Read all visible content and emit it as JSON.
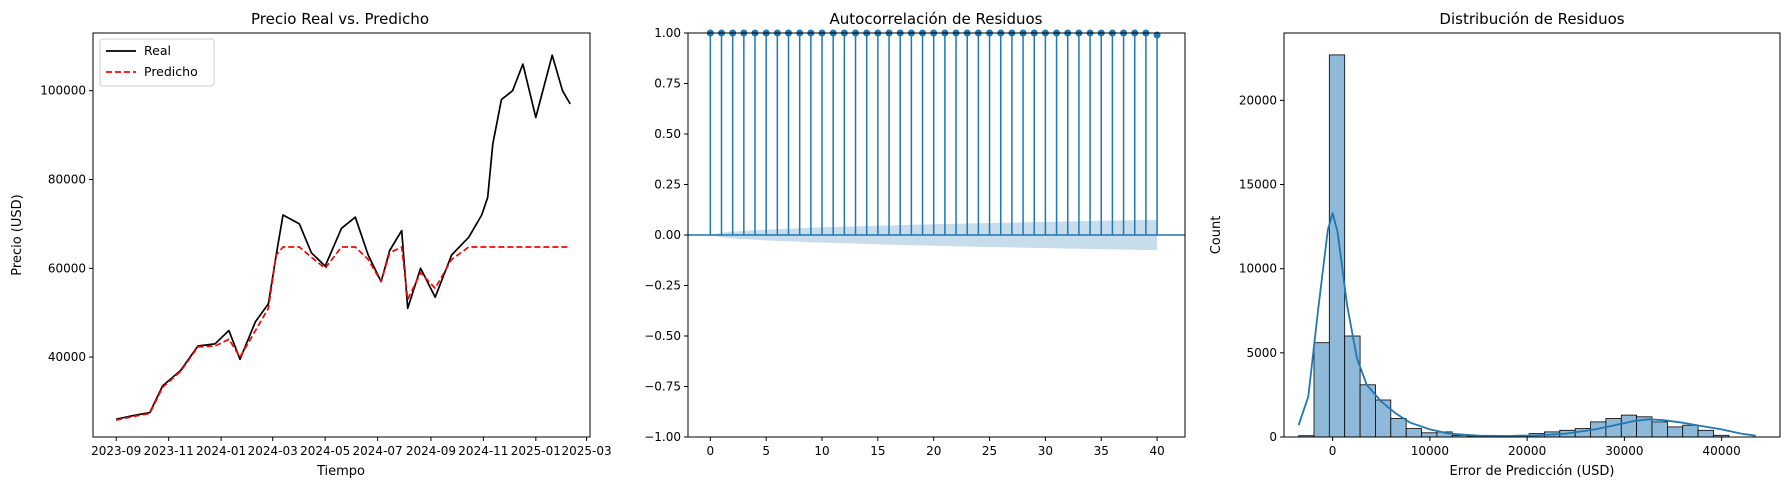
{
  "colors": {
    "real": "#000000",
    "predicted": "#ff0000",
    "acf": "#1f77b4",
    "band": "#1f77b4",
    "hist_fill": "#8fb9d9",
    "kde": "#1f77b4"
  },
  "chart_data": [
    {
      "type": "line",
      "title": "Precio Real vs. Predicho",
      "xlabel": "Tiempo",
      "ylabel": "Precio (USD)",
      "legend": {
        "placement": "top-left",
        "entries": [
          "Real",
          "Predicho"
        ]
      },
      "xlim": [
        "2023-08-05",
        "2025-03-05"
      ],
      "ylim": [
        22000,
        113000
      ],
      "x_ticks": [
        "2023-09",
        "2023-11",
        "2024-01",
        "2024-03",
        "2024-05",
        "2024-07",
        "2024-09",
        "2024-11",
        "2025-01",
        "2025-03"
      ],
      "y_ticks": [
        40000,
        60000,
        80000,
        100000
      ],
      "series": [
        {
          "name": "Real",
          "style": "solid",
          "x": [
            "2023-09-01",
            "2023-09-20",
            "2023-10-10",
            "2023-10-25",
            "2023-11-15",
            "2023-12-05",
            "2023-12-25",
            "2024-01-10",
            "2024-01-23",
            "2024-02-10",
            "2024-02-25",
            "2024-03-05",
            "2024-03-13",
            "2024-04-01",
            "2024-04-15",
            "2024-05-01",
            "2024-05-20",
            "2024-06-05",
            "2024-06-20",
            "2024-07-05",
            "2024-07-15",
            "2024-07-29",
            "2024-08-05",
            "2024-08-20",
            "2024-09-06",
            "2024-09-25",
            "2024-10-15",
            "2024-10-30",
            "2024-11-06",
            "2024-11-12",
            "2024-11-22",
            "2024-12-05",
            "2024-12-17",
            "2025-01-01",
            "2025-01-20",
            "2025-02-01",
            "2025-02-10"
          ],
          "y": [
            26000,
            26800,
            27500,
            33500,
            37000,
            42500,
            43000,
            46000,
            39500,
            48000,
            52000,
            63000,
            72000,
            70000,
            63500,
            60500,
            69000,
            71500,
            63000,
            57000,
            64000,
            68500,
            51000,
            60000,
            53500,
            63000,
            67000,
            72000,
            76000,
            88000,
            98000,
            100000,
            106000,
            94000,
            108000,
            100000,
            97000
          ]
        },
        {
          "name": "Predicho",
          "style": "dashed",
          "x": [
            "2023-09-01",
            "2023-09-20",
            "2023-10-10",
            "2023-10-25",
            "2023-11-15",
            "2023-12-05",
            "2023-12-25",
            "2024-01-10",
            "2024-01-23",
            "2024-02-10",
            "2024-02-25",
            "2024-03-05",
            "2024-03-13",
            "2024-04-01",
            "2024-04-15",
            "2024-05-01",
            "2024-05-20",
            "2024-06-05",
            "2024-06-20",
            "2024-07-05",
            "2024-07-15",
            "2024-07-29",
            "2024-08-05",
            "2024-08-20",
            "2024-09-06",
            "2024-09-25",
            "2024-10-15",
            "2024-11-01",
            "2024-12-01",
            "2025-01-01",
            "2025-02-10"
          ],
          "y": [
            25800,
            26600,
            27300,
            33200,
            36800,
            42300,
            42500,
            44000,
            40000,
            46000,
            51000,
            63000,
            64800,
            64800,
            62500,
            60000,
            64800,
            64800,
            62000,
            57000,
            63500,
            64800,
            53000,
            59000,
            55500,
            62000,
            64800,
            64800,
            64800,
            64800,
            64800
          ]
        }
      ]
    },
    {
      "type": "stem",
      "title": "Autocorrelación de Residuos",
      "xlim": [
        -2,
        42.5
      ],
      "ylim": [
        -1,
        1
      ],
      "x_ticks": [
        0,
        5,
        10,
        15,
        20,
        25,
        30,
        35,
        40
      ],
      "y_ticks": [
        "−1.00",
        "−0.75",
        "−0.50",
        "−0.25",
        "0.00",
        "0.25",
        "0.50",
        "0.75",
        "1.00"
      ],
      "lags": [
        0,
        1,
        2,
        3,
        4,
        5,
        6,
        7,
        8,
        9,
        10,
        11,
        12,
        13,
        14,
        15,
        16,
        17,
        18,
        19,
        20,
        21,
        22,
        23,
        24,
        25,
        26,
        27,
        28,
        29,
        30,
        31,
        32,
        33,
        34,
        35,
        36,
        37,
        38,
        39,
        40
      ],
      "values": [
        1,
        1,
        1,
        1,
        1,
        1,
        1,
        1,
        1,
        1,
        1,
        1,
        1,
        1,
        1,
        1,
        1,
        1,
        1,
        1,
        1,
        1,
        1,
        1,
        1,
        1,
        1,
        1,
        1,
        1,
        1,
        1,
        1,
        1,
        1,
        1,
        1,
        1,
        1,
        1,
        0.99
      ],
      "confidence_band_at_lag40": 0.075
    },
    {
      "type": "bar",
      "title": "Distribución de Residuos",
      "xlabel": "Error de Predicción (USD)",
      "ylabel": "Count",
      "xlim": [
        -5000,
        46000
      ],
      "ylim": [
        0,
        24000
      ],
      "x_ticks": [
        0,
        10000,
        20000,
        30000,
        40000
      ],
      "y_ticks": [
        0,
        5000,
        10000,
        15000,
        20000
      ],
      "bin_start": -3500,
      "bin_width": 1580,
      "counts": [
        80,
        5600,
        22700,
        6000,
        3100,
        2200,
        1100,
        500,
        250,
        300,
        100,
        60,
        60,
        60,
        100,
        200,
        300,
        400,
        500,
        900,
        1100,
        1300,
        1200,
        900,
        600,
        700,
        400,
        100
      ],
      "kde": {
        "x": [
          -3500,
          -2500,
          -1500,
          -500,
          0,
          500,
          1500,
          2500,
          3500,
          5000,
          6500,
          8000,
          10000,
          12000,
          15000,
          18000,
          21000,
          24000,
          27000,
          29000,
          31000,
          32500,
          34000,
          36000,
          38000,
          40000,
          42000,
          43500
        ],
        "y": [
          700,
          2400,
          7500,
          12300,
          13300,
          12200,
          7800,
          4700,
          3100,
          2100,
          1400,
          850,
          450,
          200,
          80,
          60,
          90,
          200,
          450,
          700,
          950,
          1050,
          1000,
          850,
          650,
          450,
          200,
          80
        ]
      }
    }
  ]
}
